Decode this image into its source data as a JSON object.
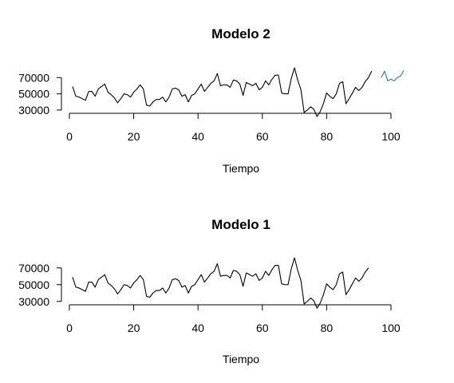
{
  "chart_data": [
    {
      "type": "line",
      "title": "Modelo 2",
      "xlabel": "Tiempo",
      "ylabel": "",
      "xlim": [
        1,
        104
      ],
      "ylim": [
        25000,
        85000
      ],
      "x_ticks": [
        0,
        20,
        40,
        60,
        80,
        100
      ],
      "y_ticks": [
        30000,
        50000,
        70000
      ],
      "x_tick_labels": [
        "0",
        "20",
        "40",
        "60",
        "80",
        "100"
      ],
      "y_tick_labels": [
        "30000",
        "50000",
        "70000"
      ],
      "colors": {
        "observed": "#000000",
        "forecast": "#1f77b4"
      },
      "series": [
        {
          "x_start": 1,
          "values": [
            59000,
            47000,
            46000,
            44000,
            42000,
            53000,
            53000,
            47000,
            56000,
            59000,
            62000,
            52000,
            49000,
            45000,
            39000,
            44000,
            50000,
            49000,
            46000,
            52000,
            56000,
            61000,
            56000,
            36000,
            35000,
            40000,
            43000,
            43000,
            46000,
            40000,
            46000,
            56000,
            57000,
            55000,
            47000,
            49000,
            40000,
            48000,
            50000,
            56000,
            62000,
            53000,
            58000,
            63000,
            66000,
            75000,
            60000,
            61000,
            61000,
            58000,
            67000,
            66000,
            62000,
            48000,
            64000,
            62000,
            60000,
            63000,
            55000,
            58000,
            66000,
            61000,
            68000,
            73000,
            73000,
            51000,
            50000,
            50000,
            69000,
            82000,
            67000,
            55000,
            27000,
            30000,
            34000,
            31000,
            22000,
            28000,
            38000,
            51000,
            47000,
            44000,
            50000,
            63000,
            65000,
            38000,
            44000,
            51000,
            58000,
            54000,
            58000,
            65000,
            70000,
            78000
          ]
        },
        {
          "x_start": 97,
          "values": [
            70000,
            78000,
            66000,
            68000,
            66000,
            70000,
            72000,
            79000
          ]
        }
      ]
    },
    {
      "type": "line",
      "title": "Modelo 1",
      "xlabel": "Tiempo",
      "ylabel": "",
      "xlim": [
        1,
        104
      ],
      "ylim": [
        25000,
        85000
      ],
      "x_ticks": [
        0,
        20,
        40,
        60,
        80,
        100
      ],
      "y_ticks": [
        30000,
        50000,
        70000
      ],
      "x_tick_labels": [
        "0",
        "20",
        "40",
        "60",
        "80",
        "100"
      ],
      "y_tick_labels": [
        "30000",
        "50000",
        "70000"
      ],
      "colors": {
        "observed": "#000000"
      },
      "series": [
        {
          "x_start": 1,
          "values": [
            59000,
            47000,
            46000,
            44000,
            42000,
            53000,
            53000,
            47000,
            56000,
            59000,
            62000,
            52000,
            49000,
            45000,
            39000,
            44000,
            50000,
            49000,
            46000,
            52000,
            56000,
            61000,
            56000,
            36000,
            35000,
            40000,
            43000,
            43000,
            46000,
            40000,
            46000,
            56000,
            57000,
            55000,
            47000,
            49000,
            40000,
            48000,
            50000,
            56000,
            62000,
            53000,
            58000,
            63000,
            66000,
            75000,
            60000,
            61000,
            61000,
            58000,
            67000,
            66000,
            62000,
            48000,
            64000,
            62000,
            60000,
            63000,
            55000,
            58000,
            66000,
            61000,
            68000,
            73000,
            73000,
            51000,
            50000,
            50000,
            69000,
            82000,
            67000,
            55000,
            27000,
            30000,
            34000,
            31000,
            22000,
            28000,
            38000,
            51000,
            47000,
            44000,
            50000,
            63000,
            65000,
            38000,
            44000,
            51000,
            58000,
            54000,
            58000,
            65000,
            70000
          ]
        }
      ]
    }
  ]
}
